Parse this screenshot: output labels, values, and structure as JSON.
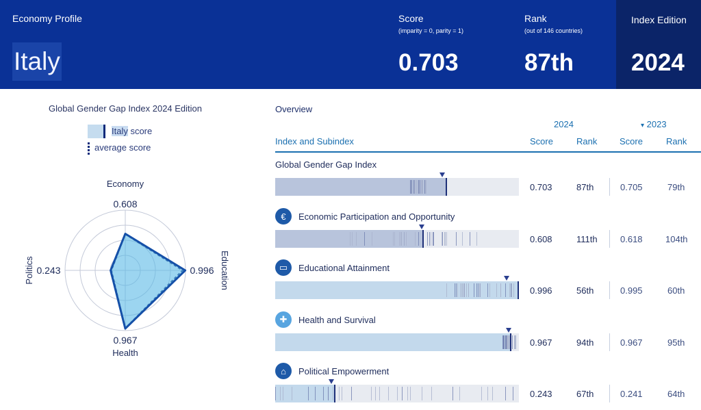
{
  "header": {
    "profile_label": "Economy Profile",
    "country": "Italy",
    "score_label": "Score",
    "score_sub": "(imparity = 0, parity = 1)",
    "score_value": "0.703",
    "rank_label": "Rank",
    "rank_sub": "(out of 146 countries)",
    "rank_value": "87th",
    "edition_label": "Index Edition",
    "edition_value": "2024",
    "colors": {
      "primary": "#0a3196",
      "edition_box": "#0b2468"
    }
  },
  "radar": {
    "title": "Global Gender Gap Index 2024 Edition",
    "legend": {
      "country_word": "Italy",
      "country_rest": " score",
      "average": "average score"
    },
    "axes": [
      {
        "name": "Economy",
        "value_label": "0.608"
      },
      {
        "name": "Education",
        "value_label": "0.996"
      },
      {
        "name": "Health",
        "value_label": "0.967"
      },
      {
        "name": "Politics",
        "value_label": "0.243"
      }
    ]
  },
  "overview": {
    "title": "Overview",
    "year_current": "2024",
    "year_prev_marker": "▾",
    "year_prev": "2023",
    "col_index": "Index and Subindex",
    "col_score": "Score",
    "col_rank": "Rank",
    "col_score_prev": "Score",
    "col_rank_prev": "Rank",
    "rows": [
      {
        "title": "Global Gender Gap Index",
        "icon": "",
        "score": "0.703",
        "rank": "87th",
        "score_prev": "0.705",
        "rank_prev": "79th"
      },
      {
        "title": "Economic Participation and Opportunity",
        "icon": "economy-icon",
        "score": "0.608",
        "rank": "111th",
        "score_prev": "0.618",
        "rank_prev": "104th"
      },
      {
        "title": "Educational Attainment",
        "icon": "education-book-icon",
        "score": "0.996",
        "rank": "56th",
        "score_prev": "0.995",
        "rank_prev": "60th"
      },
      {
        "title": "Health and Survival",
        "icon": "health-cross-icon",
        "score": "0.967",
        "rank": "94th",
        "score_prev": "0.967",
        "rank_prev": "95th"
      },
      {
        "title": "Political Empowerment",
        "icon": "politics-building-icon",
        "score": "0.243",
        "rank": "67th",
        "score_prev": "0.241",
        "rank_prev": "64th"
      }
    ]
  },
  "chart_data": [
    {
      "type": "radar",
      "title": "Global Gender Gap Index 2024 Edition",
      "axes": [
        "Economy",
        "Education",
        "Health",
        "Politics"
      ],
      "series": [
        {
          "name": "Italy score",
          "values": [
            0.608,
            0.996,
            0.967,
            0.243
          ]
        },
        {
          "name": "average score",
          "values": [
            0.6,
            0.95,
            0.96,
            0.23
          ]
        }
      ],
      "range": [
        0,
        1
      ]
    },
    {
      "type": "bar",
      "title": "Overview",
      "categories": [
        "Global Gender Gap Index",
        "Economic Participation and Opportunity",
        "Educational Attainment",
        "Health and Survival",
        "Political Empowerment"
      ],
      "series": [
        {
          "name": "2024 Score",
          "values": [
            0.703,
            0.608,
            0.996,
            0.967,
            0.243
          ]
        },
        {
          "name": "2023 Score",
          "values": [
            0.705,
            0.618,
            0.995,
            0.967,
            0.241
          ]
        }
      ],
      "average_marker": [
        0.685,
        0.601,
        0.949,
        0.958,
        0.229
      ],
      "ylim": [
        0,
        1
      ]
    }
  ]
}
